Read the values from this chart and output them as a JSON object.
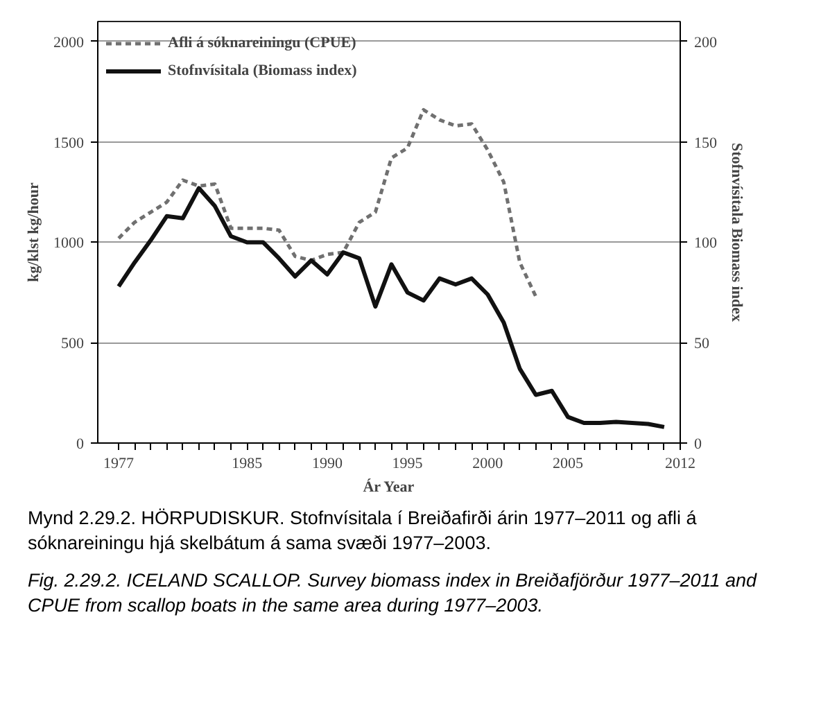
{
  "chart_data": {
    "type": "line",
    "xlabel": "Ár Year",
    "ylabel": "kg/klst kg/hour",
    "y2label": "Stofnvísitala Biomass index",
    "x": [
      1977,
      1978,
      1979,
      1980,
      1981,
      1982,
      1983,
      1984,
      1985,
      1986,
      1987,
      1988,
      1989,
      1990,
      1991,
      1992,
      1993,
      1994,
      1995,
      1996,
      1997,
      1998,
      1999,
      2000,
      2001,
      2002,
      2003,
      2004,
      2005,
      2006,
      2007,
      2008,
      2009,
      2010,
      2011
    ],
    "series": [
      {
        "name": "Afli á sóknareiningu (CPUE)",
        "color": "#707070",
        "line_style": "dashed",
        "axis": "y",
        "values": [
          1020,
          1100,
          1150,
          1200,
          1310,
          1280,
          1290,
          1070,
          1070,
          1070,
          1060,
          930,
          910,
          940,
          950,
          1100,
          1150,
          1420,
          1470,
          1660,
          1610,
          1580,
          1590,
          1460,
          1300,
          900,
          730,
          null,
          null,
          null,
          null,
          null,
          null,
          null,
          null
        ]
      },
      {
        "name": "Stofnvísitala (Biomass index)",
        "color": "#111111",
        "line_style": "solid",
        "axis": "y2",
        "values": [
          78,
          90,
          101,
          113,
          112,
          127,
          118,
          103,
          100,
          100,
          92,
          83,
          91,
          84,
          95,
          92,
          68,
          89,
          75,
          71,
          82,
          79,
          82,
          74,
          60,
          37,
          24,
          26,
          13,
          10,
          10,
          10.5,
          10,
          9.5,
          8
        ]
      }
    ],
    "xlim": [
      1975.7,
      2012
    ],
    "xticks": [
      1977,
      {
        "value": 1978,
        "label": null
      },
      {
        "value": 1979,
        "label": null
      },
      {
        "value": 1980,
        "label": null
      },
      {
        "value": 1981,
        "label": null
      },
      {
        "value": 1982,
        "label": null
      },
      {
        "value": 1983,
        "label": null
      },
      {
        "value": 1984,
        "label": null
      },
      1985,
      {
        "value": 1986,
        "label": null
      },
      {
        "value": 1987,
        "label": null
      },
      {
        "value": 1988,
        "label": null
      },
      {
        "value": 1989,
        "label": null
      },
      1990,
      {
        "value": 1991,
        "label": null
      },
      {
        "value": 1992,
        "label": null
      },
      {
        "value": 1993,
        "label": null
      },
      {
        "value": 1994,
        "label": null
      },
      1995,
      {
        "value": 1996,
        "label": null
      },
      {
        "value": 1997,
        "label": null
      },
      {
        "value": 1998,
        "label": null
      },
      {
        "value": 1999,
        "label": null
      },
      2000,
      {
        "value": 2001,
        "label": null
      },
      {
        "value": 2002,
        "label": null
      },
      {
        "value": 2003,
        "label": null
      },
      {
        "value": 2004,
        "label": null
      },
      2005,
      {
        "value": 2006,
        "label": null
      },
      {
        "value": 2007,
        "label": null
      },
      {
        "value": 2008,
        "label": null
      },
      {
        "value": 2009,
        "label": null
      },
      {
        "value": 2010,
        "label": null
      },
      {
        "value": 2011,
        "label": null
      },
      2012
    ],
    "ylim": [
      0,
      2100
    ],
    "yticks": [
      0,
      500,
      1000,
      1500,
      2000
    ],
    "y2lim": [
      0,
      210
    ],
    "y2ticks": [
      0,
      50,
      100,
      150,
      200
    ],
    "grid": "y",
    "legend": "top left",
    "annotations": [
      "Mynd 2.29.2. HÖRPUDISKUR. Stofnvísitala í Breiðafirði árin 1977–2011 og afli á sóknareiningu hjá skelbátum á sama svæði 1977–2003.",
      "Fig. 2.29.2. ICELAND SCALLOP. Survey biomass index in Breiðafjörður 1977–2011 and CPUE from scallop boats in the same area during 1977–2003."
    ]
  }
}
